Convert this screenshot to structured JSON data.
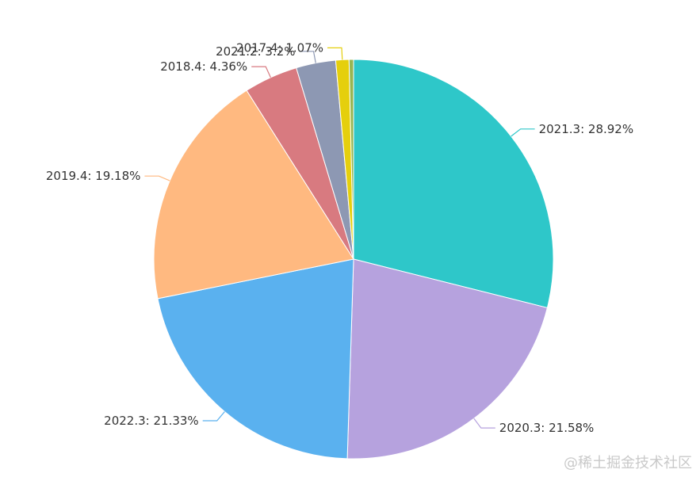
{
  "chart_data": {
    "type": "pie",
    "title": "",
    "slices": [
      {
        "name": "2021.3",
        "percent": 28.92,
        "label": "2021.3: 28.92%",
        "color": "#2ec7c9"
      },
      {
        "name": "2020.3",
        "percent": 21.58,
        "label": "2020.3: 21.58%",
        "color": "#b6a2de"
      },
      {
        "name": "2022.3",
        "percent": 21.33,
        "label": "2022.3: 21.33%",
        "color": "#5ab1ef"
      },
      {
        "name": "2019.4",
        "percent": 19.18,
        "label": "2019.4: 19.18%",
        "color": "#ffb980"
      },
      {
        "name": "2018.4",
        "percent": 4.36,
        "label": "2018.4: 4.36%",
        "color": "#d87a80"
      },
      {
        "name": "2021.2",
        "percent": 3.2,
        "label": "2021.2: 3.2%",
        "color": "#8d98b3"
      },
      {
        "name": "2017.4",
        "percent": 1.07,
        "label": "2017.4: 1.07%",
        "color": "#e5cf0d"
      },
      {
        "name": "",
        "percent": 0.36,
        "label": "",
        "color": "#97b552"
      }
    ]
  },
  "watermark": "@稀土掘金技术社区"
}
